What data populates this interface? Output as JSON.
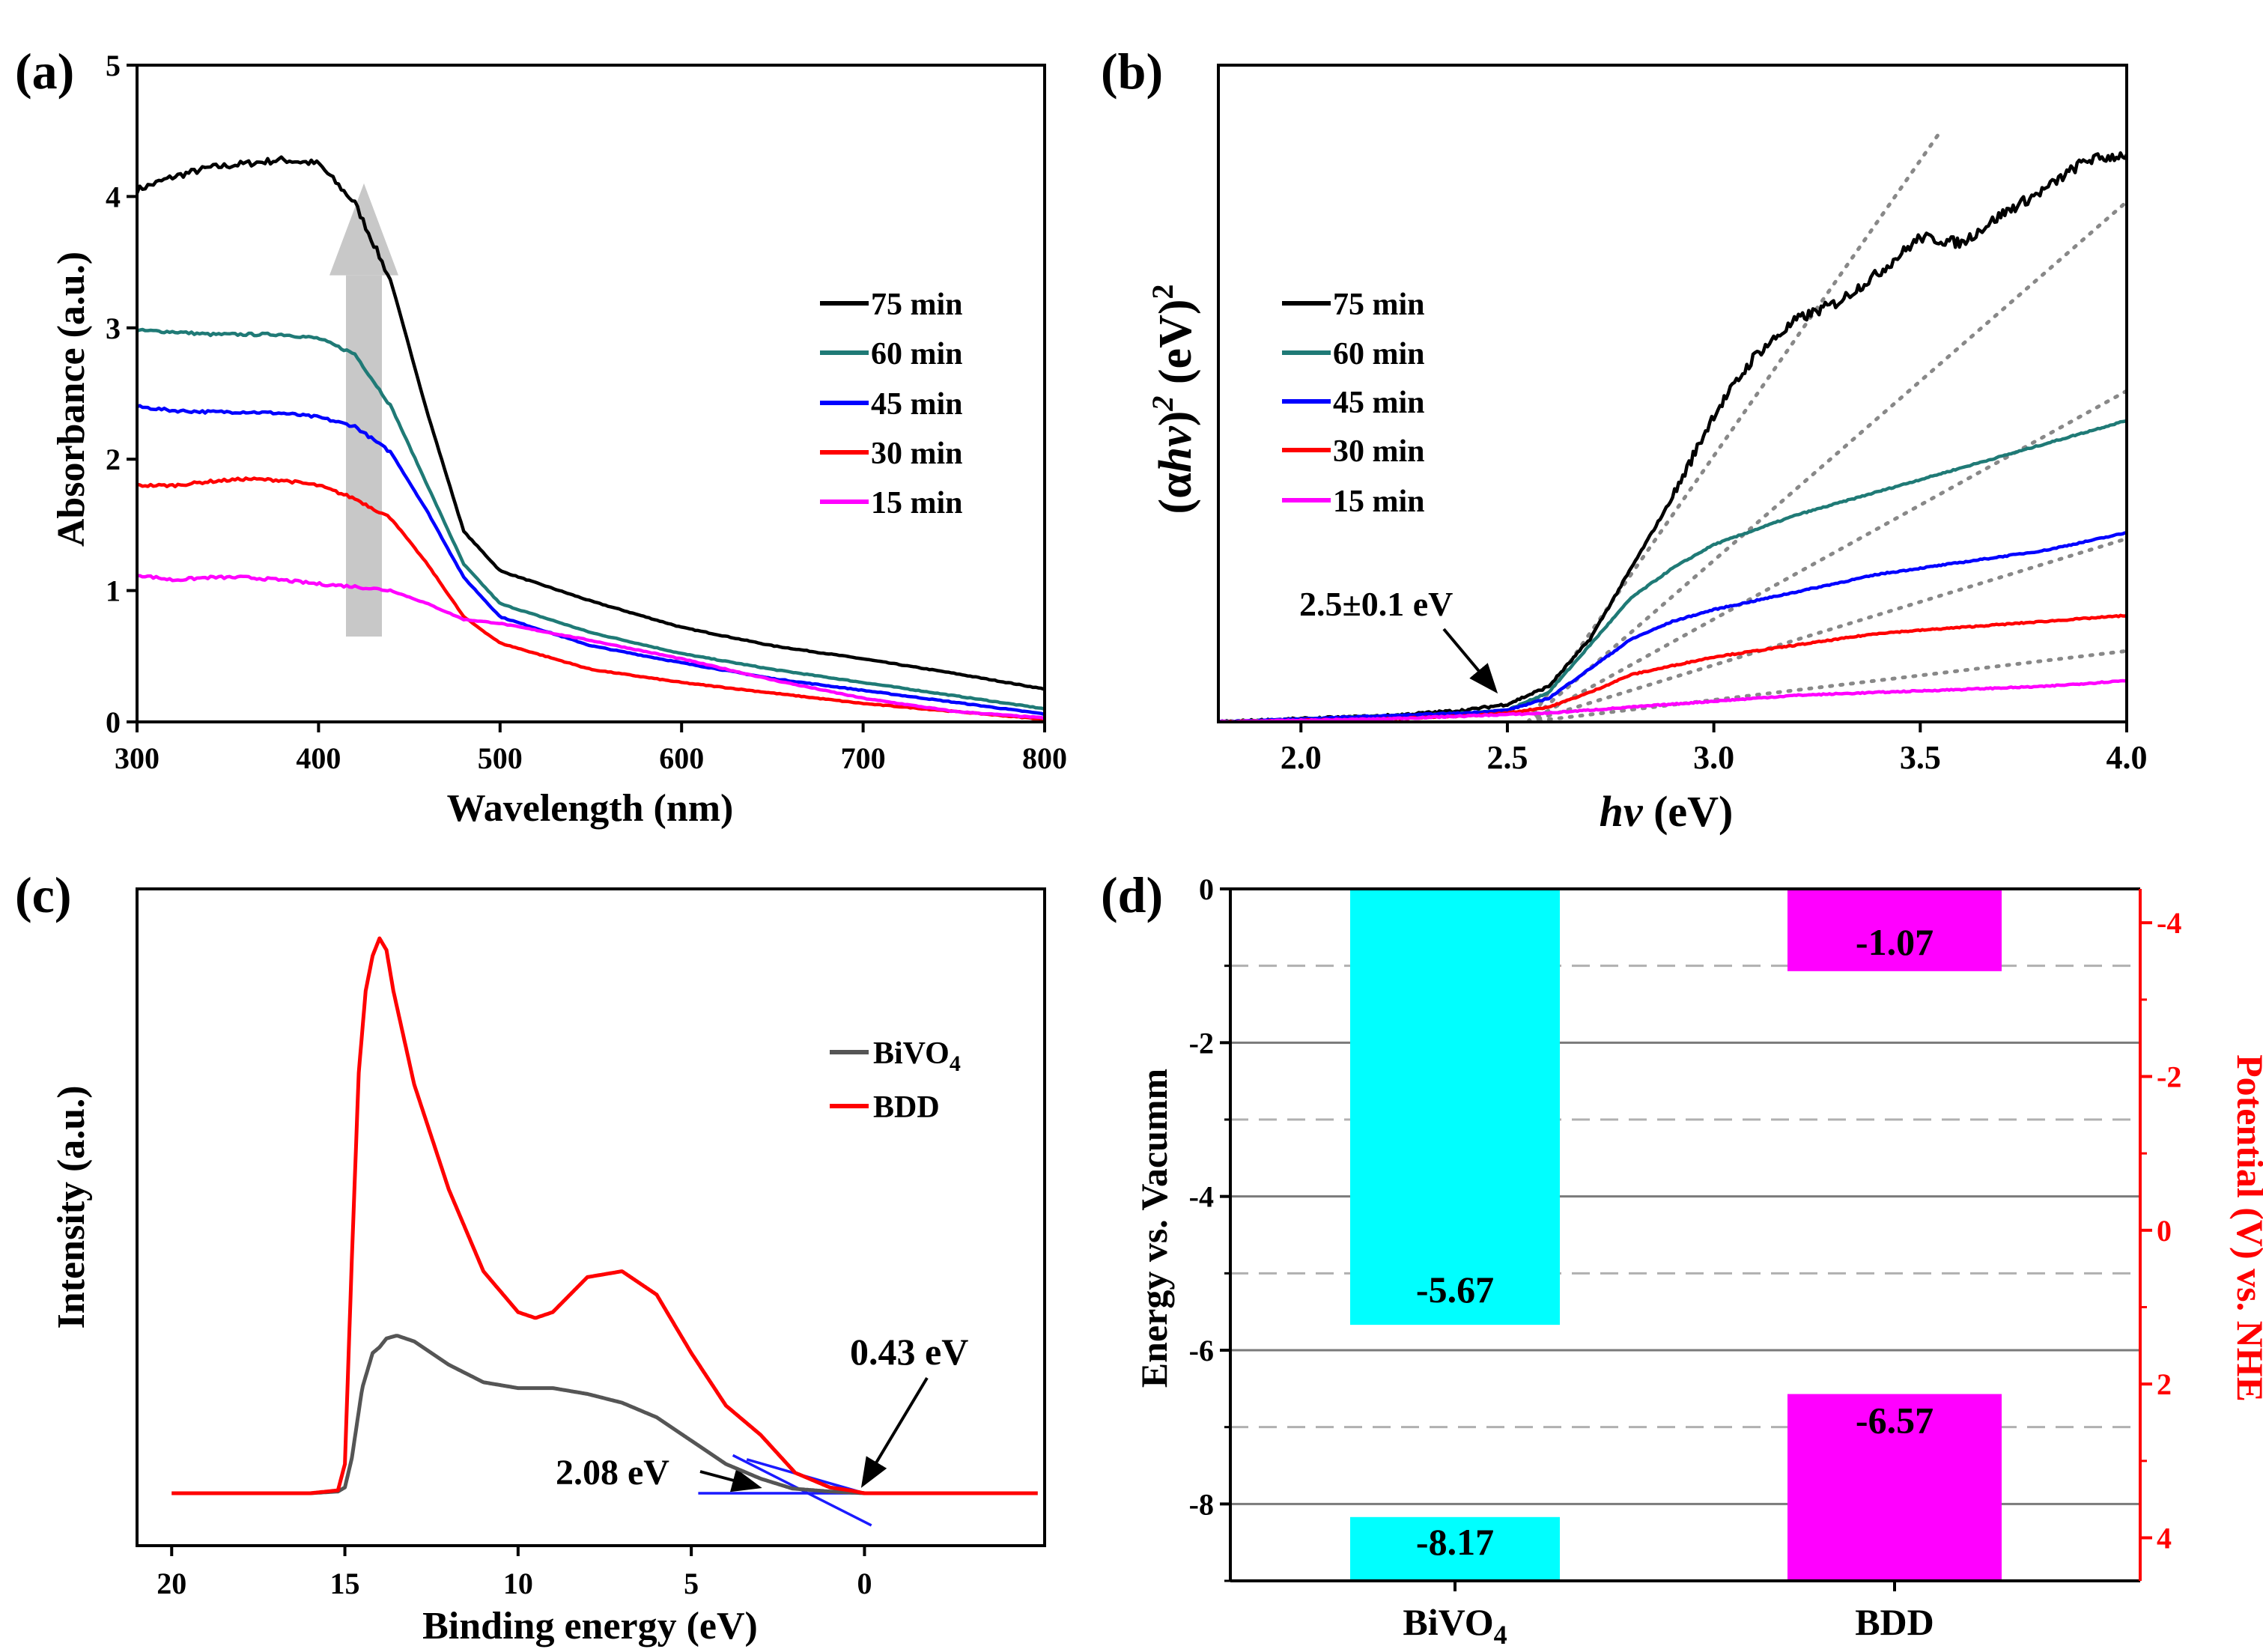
{
  "colors": {
    "c75": "#000000",
    "c60": "#1f7a76",
    "c45": "#0000ff",
    "c30": "#ff0000",
    "c15": "#ff00ff",
    "bivo4_line": "#555555",
    "bdd_line": "#ff0000",
    "fit_line": "#1a1aff",
    "cyan": "#00ffff",
    "magenta": "#ff00ff",
    "right_axis": "#ff0000",
    "dotted": "#888888",
    "arrow_fill": "#c8c8c8"
  },
  "chart_data": [
    {
      "panel": "(a)",
      "type": "line",
      "xlabel": "Wavelength (nm)",
      "ylabel": "Absorbance (a.u.)",
      "xlim": [
        300,
        800
      ],
      "ylim": [
        0,
        5
      ],
      "xticks": [
        "300",
        "400",
        "500",
        "600",
        "700",
        "800"
      ],
      "yticks": [
        "0",
        "1",
        "2",
        "3",
        "4",
        "5"
      ],
      "legend_position": "right",
      "series": [
        {
          "name": "75 min",
          "color_key": "c75",
          "x": [
            300,
            320,
            340,
            360,
            380,
            400,
            420,
            440,
            460,
            480,
            500,
            550,
            600,
            650,
            700,
            750,
            800
          ],
          "y": [
            4.05,
            4.15,
            4.22,
            4.25,
            4.28,
            4.25,
            3.95,
            3.35,
            2.35,
            1.45,
            1.15,
            0.92,
            0.72,
            0.58,
            0.48,
            0.37,
            0.25
          ]
        },
        {
          "name": "60 min",
          "color_key": "c60",
          "x": [
            300,
            320,
            340,
            360,
            380,
            400,
            420,
            440,
            460,
            480,
            500,
            550,
            600,
            650,
            700,
            750,
            800
          ],
          "y": [
            2.98,
            2.97,
            2.95,
            2.95,
            2.95,
            2.92,
            2.8,
            2.4,
            1.8,
            1.2,
            0.9,
            0.68,
            0.52,
            0.4,
            0.3,
            0.2,
            0.1
          ]
        },
        {
          "name": "45 min",
          "color_key": "c45",
          "x": [
            300,
            320,
            340,
            360,
            380,
            400,
            420,
            440,
            460,
            480,
            500,
            550,
            600,
            650,
            700,
            750,
            800
          ],
          "y": [
            2.4,
            2.37,
            2.36,
            2.36,
            2.35,
            2.32,
            2.25,
            2.05,
            1.6,
            1.1,
            0.8,
            0.58,
            0.45,
            0.33,
            0.24,
            0.15,
            0.06
          ]
        },
        {
          "name": "30 min",
          "color_key": "c30",
          "x": [
            300,
            320,
            340,
            360,
            380,
            400,
            420,
            440,
            460,
            480,
            500,
            550,
            600,
            650,
            700,
            750,
            800
          ],
          "y": [
            1.8,
            1.8,
            1.83,
            1.85,
            1.84,
            1.8,
            1.7,
            1.55,
            1.2,
            0.8,
            0.6,
            0.4,
            0.3,
            0.22,
            0.14,
            0.08,
            0.02
          ]
        },
        {
          "name": "15 min",
          "color_key": "c15",
          "x": [
            300,
            320,
            340,
            360,
            380,
            400,
            420,
            440,
            460,
            480,
            500,
            550,
            600,
            650,
            700,
            750,
            800
          ],
          "y": [
            1.12,
            1.08,
            1.1,
            1.1,
            1.08,
            1.05,
            1.03,
            1.0,
            0.9,
            0.78,
            0.75,
            0.62,
            0.48,
            0.32,
            0.18,
            0.08,
            0.03
          ]
        }
      ],
      "annotations": [
        "increasing-time arrow"
      ]
    },
    {
      "panel": "(b)",
      "type": "line",
      "xlabel_parts": [
        "hv",
        " (eV)"
      ],
      "ylabel_parts": [
        "(α",
        "hv",
        ")",
        "2",
        " (eV)",
        "2"
      ],
      "xlim": [
        1.8,
        4.0
      ],
      "xticks": [
        "2.0",
        "2.5",
        "3.0",
        "3.5",
        "4.0"
      ],
      "yticks": [],
      "legend_position": "left",
      "annotation": "2.5±0.1 eV",
      "series": [
        {
          "name": "75 min",
          "color_key": "c75",
          "x": [
            1.8,
            2.2,
            2.4,
            2.5,
            2.6,
            2.7,
            2.8,
            2.9,
            3.0,
            3.1,
            3.2,
            3.3,
            3.4,
            3.5,
            3.6,
            3.7,
            3.8,
            3.9,
            4.0
          ],
          "y": [
            0,
            0.01,
            0.02,
            0.03,
            0.06,
            0.14,
            0.26,
            0.38,
            0.52,
            0.62,
            0.68,
            0.71,
            0.76,
            0.82,
            0.81,
            0.86,
            0.9,
            0.95,
            0.96
          ]
        },
        {
          "name": "60 min",
          "color_key": "c60",
          "x": [
            1.8,
            2.2,
            2.4,
            2.5,
            2.6,
            2.7,
            2.8,
            2.9,
            3.0,
            3.2,
            3.4,
            3.6,
            3.8,
            4.0
          ],
          "y": [
            0,
            0.01,
            0.015,
            0.02,
            0.05,
            0.13,
            0.21,
            0.26,
            0.3,
            0.35,
            0.39,
            0.43,
            0.47,
            0.51
          ]
        },
        {
          "name": "45 min",
          "color_key": "c45",
          "x": [
            1.8,
            2.2,
            2.4,
            2.5,
            2.6,
            2.7,
            2.8,
            2.9,
            3.0,
            3.2,
            3.4,
            3.6,
            3.8,
            4.0
          ],
          "y": [
            0,
            0.01,
            0.015,
            0.02,
            0.04,
            0.09,
            0.14,
            0.17,
            0.19,
            0.22,
            0.25,
            0.27,
            0.29,
            0.32
          ]
        },
        {
          "name": "30 min",
          "color_key": "c30",
          "x": [
            1.8,
            2.2,
            2.4,
            2.5,
            2.6,
            2.7,
            2.8,
            3.0,
            3.2,
            3.4,
            3.6,
            3.8,
            4.0
          ],
          "y": [
            0,
            0.005,
            0.01,
            0.015,
            0.025,
            0.05,
            0.08,
            0.11,
            0.13,
            0.15,
            0.16,
            0.17,
            0.18
          ]
        },
        {
          "name": "15 min",
          "color_key": "c15",
          "x": [
            1.8,
            2.2,
            2.4,
            2.6,
            2.8,
            3.0,
            3.2,
            3.4,
            3.6,
            3.8,
            4.0
          ],
          "y": [
            0,
            0.005,
            0.01,
            0.015,
            0.025,
            0.035,
            0.045,
            0.05,
            0.055,
            0.06,
            0.07
          ]
        }
      ],
      "fits": [
        {
          "x": [
            2.55,
            3.55
          ],
          "y": [
            0,
            1.0
          ]
        },
        {
          "x": [
            2.55,
            4.0
          ],
          "y": [
            0,
            0.88
          ]
        },
        {
          "x": [
            2.55,
            4.0
          ],
          "y": [
            0,
            0.56
          ]
        },
        {
          "x": [
            2.55,
            4.0
          ],
          "y": [
            0,
            0.31
          ]
        },
        {
          "x": [
            2.55,
            4.0
          ],
          "y": [
            0,
            0.12
          ]
        }
      ]
    },
    {
      "panel": "(c)",
      "type": "line",
      "xlabel": "Binding energy (eV)",
      "ylabel": "Intensity (a.u.)",
      "xlim": [
        21,
        -5.2
      ],
      "xticks": [
        {
          "v": 20,
          "label": "20"
        },
        {
          "v": 15,
          "label": "15"
        },
        {
          "v": 10,
          "label": "10"
        },
        {
          "v": 5,
          "label": "5"
        },
        {
          "v": 0,
          "label": "0"
        }
      ],
      "yticks": [],
      "legend_position": "right",
      "legend": [
        {
          "label": "BiVO",
          "sub": "4",
          "color_key": "bivo4_line"
        },
        {
          "label": "BDD",
          "sub": "",
          "color_key": "bdd_line"
        }
      ],
      "annotations": [
        "0.43 eV",
        "2.08 eV"
      ],
      "series": [
        {
          "name": "BDD",
          "color_key": "bdd_line",
          "x": [
            20,
            16,
            15.2,
            15,
            14.8,
            14.6,
            14.4,
            14.2,
            14.0,
            13.8,
            13.6,
            13,
            12,
            11,
            10,
            9.5,
            9,
            8.5,
            8,
            7,
            6,
            5,
            4,
            3,
            2,
            1,
            0.43,
            0,
            -5
          ],
          "y": [
            0,
            0,
            0.005,
            0.05,
            0.4,
            0.72,
            0.86,
            0.92,
            0.95,
            0.93,
            0.86,
            0.7,
            0.52,
            0.38,
            0.31,
            0.3,
            0.31,
            0.34,
            0.37,
            0.38,
            0.34,
            0.24,
            0.15,
            0.1,
            0.035,
            0.01,
            0.005,
            0,
            0
          ]
        },
        {
          "name": "BiVO4",
          "color_key": "bivo4_line",
          "x": [
            20,
            16,
            15.2,
            15,
            14.8,
            14.5,
            14.2,
            14,
            13.8,
            13.5,
            13,
            12,
            11,
            10,
            9,
            8,
            7,
            6,
            5,
            4,
            3,
            2.08,
            1,
            0,
            -5
          ],
          "y": [
            0,
            0,
            0.003,
            0.01,
            0.06,
            0.18,
            0.24,
            0.25,
            0.265,
            0.27,
            0.26,
            0.22,
            0.19,
            0.18,
            0.18,
            0.17,
            0.155,
            0.13,
            0.09,
            0.05,
            0.025,
            0.008,
            0.003,
            0,
            0
          ]
        }
      ],
      "fits": [
        {
          "x": [
            4.8,
            -1.0
          ],
          "y": [
            0,
            0
          ]
        },
        {
          "x": [
            3.4,
            0.0
          ],
          "y": [
            0.058,
            0.0
          ]
        },
        {
          "x": [
            3.8,
            -0.2
          ],
          "y": [
            0.065,
            -0.055
          ]
        }
      ]
    },
    {
      "panel": "(d)",
      "type": "bar",
      "categories": [
        "BiVO4",
        "BDD"
      ],
      "category_labels": [
        {
          "label": "BiVO",
          "sub": "4"
        },
        {
          "label": "BDD",
          "sub": ""
        }
      ],
      "ylabel": "Energy vs. Vacumm",
      "ylabel_right": "Potential (V) vs. NHE",
      "ylim": [
        -9,
        0
      ],
      "yticks_left": [
        {
          "v": 0,
          "label": "0"
        },
        {
          "v": -2,
          "label": "-2"
        },
        {
          "v": -4,
          "label": "-4"
        },
        {
          "v": -6,
          "label": "-6"
        },
        {
          "v": -8,
          "label": "-8"
        }
      ],
      "yticks_right": [
        {
          "v": -4,
          "label": "-4"
        },
        {
          "v": -2,
          "label": "-2"
        },
        {
          "v": 0,
          "label": "0"
        },
        {
          "v": 2,
          "label": "2"
        },
        {
          "v": 4,
          "label": "4"
        }
      ],
      "right_axis_offset": -4.44,
      "grid_solid": [
        -2,
        -4,
        -6,
        -8
      ],
      "grid_dashed": [
        -1,
        -3,
        -5,
        -7
      ],
      "bars": [
        {
          "category": "BiVO4",
          "from": 0,
          "to": -5.67,
          "label": "-5.67",
          "color_key": "cyan"
        },
        {
          "category": "BiVO4",
          "from": -8.17,
          "to": -9,
          "label": "-8.17",
          "color_key": "cyan"
        },
        {
          "category": "BDD",
          "from": 0,
          "to": -1.07,
          "label": "-1.07",
          "color_key": "magenta"
        },
        {
          "category": "BDD",
          "from": -6.57,
          "to": -9,
          "label": "-6.57",
          "color_key": "magenta"
        }
      ]
    }
  ]
}
